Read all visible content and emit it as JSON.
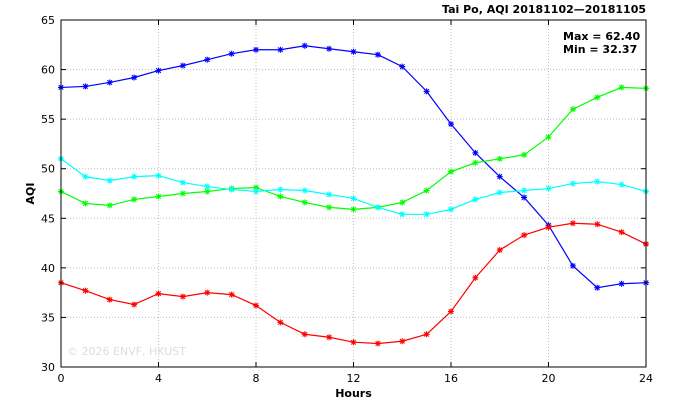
{
  "chart_data": {
    "type": "line",
    "title": "Tai Po, AQI 20181102—20181105",
    "xlabel": "Hours",
    "ylabel": "AQI",
    "xlim": [
      0,
      24
    ],
    "ylim": [
      30,
      65
    ],
    "x_ticks": [
      0,
      4,
      8,
      12,
      16,
      20,
      24
    ],
    "y_ticks": [
      30,
      35,
      40,
      45,
      50,
      55,
      60,
      65
    ],
    "grid": true,
    "stats": {
      "max": "Max = 62.40",
      "min": "Min = 32.37"
    },
    "watermark": "© 2026  ENVF, HKUST",
    "x": [
      0,
      1,
      2,
      3,
      4,
      5,
      6,
      7,
      8,
      9,
      10,
      11,
      12,
      13,
      14,
      15,
      16,
      17,
      18,
      19,
      20,
      21,
      22,
      23,
      24
    ],
    "series": [
      {
        "color": "#0000ff",
        "values": [
          58.2,
          58.3,
          58.7,
          59.2,
          59.9,
          60.4,
          61.0,
          61.6,
          62.0,
          62.0,
          62.4,
          62.1,
          61.8,
          61.5,
          60.3,
          57.8,
          54.5,
          51.6,
          49.2,
          47.1,
          44.3,
          40.2,
          38.0,
          38.4,
          38.5
        ]
      },
      {
        "color": "#00ff00",
        "values": [
          47.7,
          46.5,
          46.3,
          46.9,
          47.2,
          47.5,
          47.7,
          48.0,
          48.1,
          47.2,
          46.6,
          46.1,
          45.9,
          46.1,
          46.6,
          47.8,
          49.7,
          50.6,
          51.0,
          51.4,
          53.2,
          56.0,
          57.2,
          58.2,
          58.1
        ]
      },
      {
        "color": "#00ffff",
        "values": [
          51.0,
          49.2,
          48.8,
          49.2,
          49.3,
          48.6,
          48.2,
          47.9,
          47.7,
          47.9,
          47.8,
          47.4,
          47.0,
          46.1,
          45.4,
          45.4,
          45.9,
          46.9,
          47.6,
          47.8,
          48.0,
          48.5,
          48.7,
          48.4,
          47.7
        ]
      },
      {
        "color": "#ff0000",
        "values": [
          38.5,
          37.7,
          36.8,
          36.3,
          37.4,
          37.1,
          37.5,
          37.3,
          36.2,
          34.5,
          33.3,
          33.0,
          32.5,
          32.37,
          32.6,
          33.3,
          35.6,
          39.0,
          41.8,
          43.3,
          44.1,
          44.5,
          44.4,
          43.6,
          42.4
        ]
      }
    ]
  }
}
